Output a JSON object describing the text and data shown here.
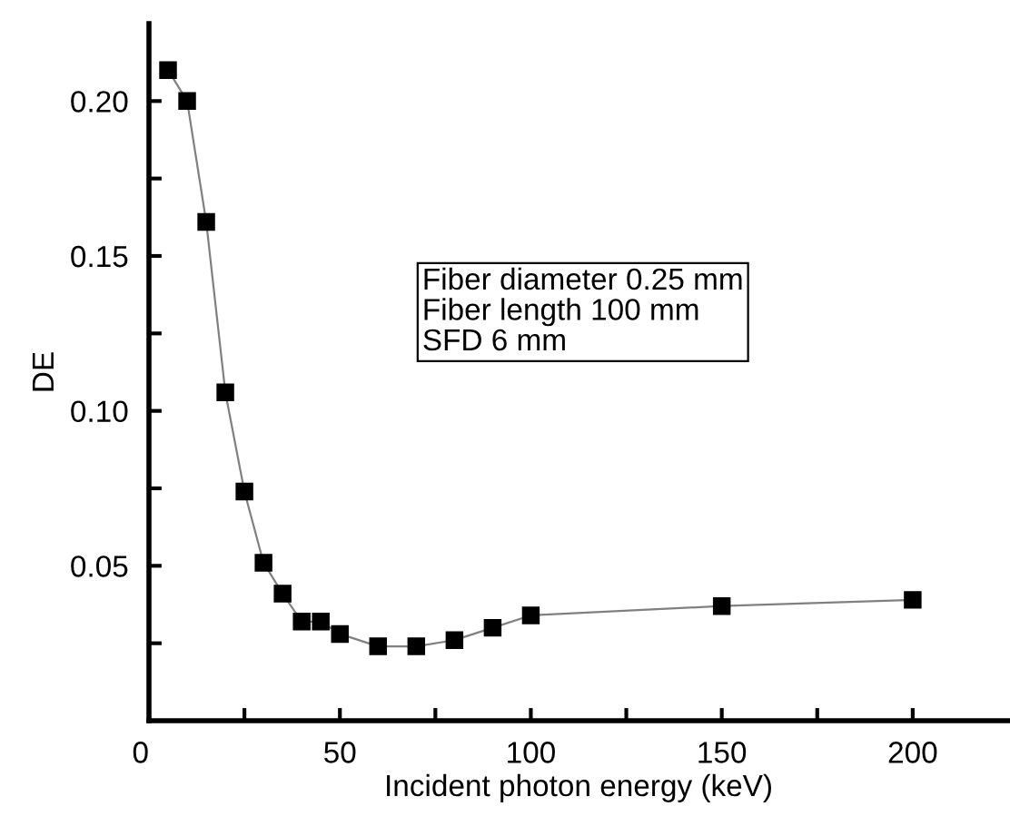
{
  "chart_data": {
    "type": "line",
    "xlabel": "Incident photon energy (keV)",
    "ylabel": "DE",
    "x": [
      5,
      10,
      15,
      20,
      25,
      30,
      35,
      40,
      45,
      50,
      60,
      70,
      80,
      90,
      100,
      150,
      200
    ],
    "series": [
      {
        "color": "#000000",
        "values": [
          0.21,
          0.2,
          0.161,
          0.106,
          0.074,
          0.051,
          0.041,
          0.032,
          0.032,
          0.028,
          0.024,
          0.024,
          0.026,
          0.03,
          0.034,
          0.037,
          0.039
        ]
      }
    ],
    "marker": "square",
    "xlim": [
      0,
      225
    ],
    "ylim": [
      0,
      0.225
    ],
    "xticks": [
      0,
      {
        "value": 25,
        "label": null
      },
      50,
      {
        "value": 75,
        "label": null
      },
      100,
      {
        "value": 125,
        "label": null
      },
      150,
      {
        "value": 175,
        "label": null
      },
      200
    ],
    "yticks": [
      {
        "value": 0.025,
        "label": null
      },
      {
        "value": 0.05,
        "label": "0.05"
      },
      {
        "value": 0.075,
        "label": null
      },
      {
        "value": 0.1,
        "label": "0.10"
      },
      {
        "value": 0.125,
        "label": null
      },
      {
        "value": 0.15,
        "label": "0.15"
      },
      {
        "value": 0.175,
        "label": null
      },
      {
        "value": 0.2,
        "label": "0.20"
      }
    ],
    "annotations": [
      "Fiber diameter 0.25 mm\nFiber length 100 mm\nSFD 6 mm"
    ],
    "grid": false,
    "legend": false
  }
}
